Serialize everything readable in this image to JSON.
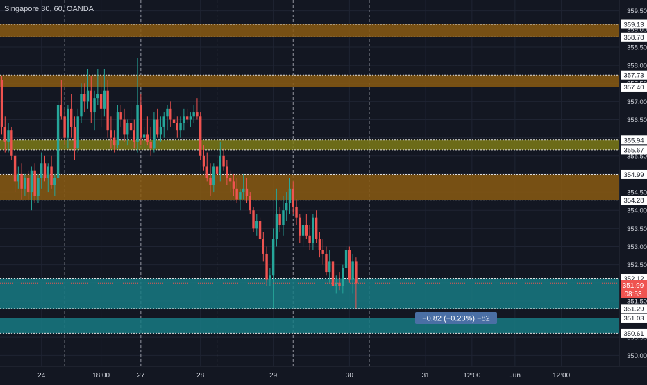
{
  "header": {
    "symbol_title": "Singapore 30, 60, OANDA"
  },
  "colors": {
    "background": "#131722",
    "grid": "#1f2433",
    "up": "#26a69a",
    "down": "#ef5350",
    "zone_orange": "#8a5a12",
    "zone_olive": "#7d7a16",
    "zone_teal": "#177a82",
    "axis_text": "#d1d4dc",
    "price_tag": "#ef5350",
    "measure_box": "#4a6fa5"
  },
  "measure_label": "−0.82 (−0.23%) −82",
  "chart_data": {
    "type": "candlestick",
    "title": "Singapore 30, 60, OANDA",
    "ylim": [
      349.7,
      359.8
    ],
    "y_ticks": [
      350.0,
      350.5,
      351.0,
      351.5,
      352.0,
      352.5,
      353.0,
      353.5,
      354.0,
      354.5,
      355.0,
      355.5,
      356.0,
      356.5,
      357.0,
      357.5,
      358.0,
      358.5,
      359.0,
      359.5
    ],
    "y_tick_labels": [
      "350.00",
      "350.50",
      "351.00",
      "351.50",
      "352.00",
      "352.50",
      "353.00",
      "353.50",
      "354.00",
      "354.50",
      "355.00",
      "355.50",
      "356.00",
      "356.50",
      "357.00",
      "357.50",
      "358.00",
      "358.50",
      "359.00",
      "359.50"
    ],
    "x_ticks": [
      {
        "label": "24",
        "bar": 12
      },
      {
        "label": "18:00",
        "bar": 30
      },
      {
        "label": "27",
        "bar": 42
      },
      {
        "label": "28",
        "bar": 60
      },
      {
        "label": "29",
        "bar": 82
      },
      {
        "label": "30",
        "bar": 105
      },
      {
        "label": "31",
        "bar": 128
      },
      {
        "label": "12:00",
        "bar": 142
      },
      {
        "label": "Jun",
        "bar": 155
      },
      {
        "label": "12:00",
        "bar": 169
      }
    ],
    "session_lines_at_bar": [
      19,
      42,
      65,
      88,
      111
    ],
    "zones": [
      {
        "low": 358.78,
        "high": 359.13,
        "kind": "orange",
        "labels": [
          "359.13",
          "358.78"
        ]
      },
      {
        "low": 357.4,
        "high": 357.73,
        "kind": "orange",
        "labels": [
          "357.73",
          "357.40"
        ]
      },
      {
        "low": 355.67,
        "high": 355.94,
        "kind": "olive",
        "labels": [
          "355.94",
          "355.67"
        ]
      },
      {
        "low": 354.28,
        "high": 354.99,
        "kind": "orange",
        "labels": [
          "354.99",
          "354.28"
        ]
      },
      {
        "low": 351.29,
        "high": 352.12,
        "kind": "teal",
        "labels": [
          "352.12",
          "351.29"
        ]
      },
      {
        "low": 350.61,
        "high": 351.03,
        "kind": "teal",
        "labels": [
          "351.03",
          "350.61"
        ]
      }
    ],
    "last_price": "351.99",
    "countdown": "08:53",
    "candles": [
      [
        357.6,
        357.7,
        356.1,
        356.3
      ],
      [
        356.3,
        356.6,
        355.6,
        355.9
      ],
      [
        355.9,
        356.4,
        355.6,
        356.2
      ],
      [
        356.2,
        356.3,
        355.4,
        355.5
      ],
      [
        355.5,
        355.6,
        354.5,
        354.8
      ],
      [
        354.8,
        355.2,
        354.6,
        355.0
      ],
      [
        355.0,
        355.3,
        354.3,
        354.6
      ],
      [
        354.6,
        355.0,
        354.4,
        354.9
      ],
      [
        354.9,
        355.1,
        354.3,
        354.5
      ],
      [
        354.5,
        355.2,
        354.0,
        355.1
      ],
      [
        355.1,
        355.3,
        354.2,
        354.4
      ],
      [
        354.4,
        355.0,
        354.2,
        354.9
      ],
      [
        354.9,
        355.6,
        354.6,
        355.3
      ],
      [
        355.3,
        355.5,
        354.8,
        354.9
      ],
      [
        354.9,
        355.3,
        354.5,
        355.2
      ],
      [
        355.2,
        355.5,
        354.6,
        354.7
      ],
      [
        354.7,
        355.0,
        354.4,
        354.9
      ],
      [
        354.9,
        357.0,
        354.8,
        356.9
      ],
      [
        356.9,
        357.6,
        356.5,
        356.6
      ],
      [
        356.6,
        356.8,
        355.8,
        356.0
      ],
      [
        356.0,
        356.9,
        355.7,
        356.8
      ],
      [
        356.8,
        357.2,
        356.0,
        356.3
      ],
      [
        356.3,
        356.6,
        355.4,
        355.7
      ],
      [
        355.7,
        356.8,
        355.6,
        356.6
      ],
      [
        356.6,
        357.5,
        356.4,
        357.2
      ],
      [
        357.2,
        357.5,
        356.7,
        357.0
      ],
      [
        357.0,
        357.9,
        356.8,
        357.3
      ],
      [
        357.3,
        357.7,
        356.4,
        356.7
      ],
      [
        356.7,
        357.3,
        356.2,
        357.1
      ],
      [
        357.1,
        357.9,
        356.9,
        357.2
      ],
      [
        357.2,
        357.7,
        356.3,
        356.8
      ],
      [
        356.8,
        357.9,
        356.6,
        357.3
      ],
      [
        357.3,
        357.6,
        356.0,
        356.2
      ],
      [
        356.2,
        356.6,
        355.7,
        356.0
      ],
      [
        356.0,
        356.2,
        355.6,
        355.8
      ],
      [
        355.8,
        356.9,
        355.7,
        356.7
      ],
      [
        356.7,
        356.9,
        356.3,
        356.5
      ],
      [
        356.5,
        356.8,
        355.9,
        356.1
      ],
      [
        356.1,
        356.5,
        355.8,
        356.4
      ],
      [
        356.4,
        356.9,
        356.1,
        356.2
      ],
      [
        356.2,
        356.5,
        355.7,
        355.9
      ],
      [
        355.9,
        358.2,
        355.6,
        356.9
      ],
      [
        356.9,
        357.2,
        355.8,
        356.0
      ],
      [
        356.0,
        356.3,
        355.7,
        356.1
      ],
      [
        356.1,
        356.6,
        355.8,
        355.9
      ],
      [
        355.9,
        356.3,
        355.5,
        355.7
      ],
      [
        355.7,
        356.7,
        355.6,
        356.5
      ],
      [
        356.5,
        356.8,
        356.0,
        356.1
      ],
      [
        356.1,
        356.6,
        355.9,
        356.3
      ],
      [
        356.3,
        356.7,
        356.0,
        356.6
      ],
      [
        356.6,
        356.9,
        356.2,
        356.8
      ],
      [
        356.8,
        357.0,
        356.3,
        356.5
      ],
      [
        356.5,
        356.7,
        356.2,
        356.4
      ],
      [
        356.4,
        356.6,
        356.0,
        356.2
      ],
      [
        356.2,
        356.6,
        356.0,
        356.4
      ],
      [
        356.4,
        356.8,
        356.2,
        356.6
      ],
      [
        356.6,
        356.8,
        356.4,
        356.5
      ],
      [
        356.5,
        356.7,
        356.3,
        356.6
      ],
      [
        356.6,
        356.9,
        356.4,
        356.7
      ],
      [
        356.7,
        357.1,
        356.5,
        356.6
      ],
      [
        356.6,
        356.7,
        355.4,
        355.5
      ],
      [
        355.5,
        355.8,
        355.1,
        355.2
      ],
      [
        355.2,
        355.6,
        354.8,
        354.9
      ],
      [
        354.9,
        355.3,
        354.4,
        354.7
      ],
      [
        354.7,
        355.3,
        354.5,
        355.2
      ],
      [
        355.2,
        355.5,
        354.9,
        355.0
      ],
      [
        355.0,
        355.9,
        354.8,
        355.5
      ],
      [
        355.5,
        355.7,
        355.1,
        355.2
      ],
      [
        355.2,
        355.4,
        354.7,
        354.9
      ],
      [
        354.9,
        355.1,
        354.5,
        354.8
      ],
      [
        354.8,
        355.0,
        354.4,
        354.6
      ],
      [
        354.6,
        354.9,
        354.2,
        354.3
      ],
      [
        354.3,
        354.6,
        354.0,
        354.5
      ],
      [
        354.5,
        355.0,
        354.3,
        354.6
      ],
      [
        354.6,
        354.9,
        354.2,
        354.4
      ],
      [
        354.4,
        354.5,
        353.9,
        354.0
      ],
      [
        354.0,
        354.1,
        353.4,
        353.5
      ],
      [
        353.5,
        353.9,
        353.3,
        353.7
      ],
      [
        353.7,
        353.8,
        353.1,
        353.2
      ],
      [
        353.2,
        353.4,
        352.6,
        352.8
      ],
      [
        352.8,
        353.0,
        351.9,
        352.1
      ],
      [
        352.1,
        352.4,
        351.9,
        352.2
      ],
      [
        352.2,
        353.5,
        351.3,
        353.2
      ],
      [
        353.2,
        354.6,
        353.0,
        353.9
      ],
      [
        353.9,
        354.1,
        353.4,
        353.6
      ],
      [
        353.6,
        354.4,
        353.3,
        354.0
      ],
      [
        354.0,
        354.5,
        353.7,
        354.2
      ],
      [
        354.2,
        354.9,
        353.9,
        354.6
      ],
      [
        354.6,
        354.8,
        353.9,
        354.1
      ],
      [
        354.1,
        354.3,
        353.6,
        353.8
      ],
      [
        353.8,
        353.9,
        353.1,
        353.3
      ],
      [
        353.3,
        353.8,
        353.0,
        353.6
      ],
      [
        353.6,
        353.9,
        353.2,
        353.3
      ],
      [
        353.3,
        353.6,
        352.9,
        353.1
      ],
      [
        353.1,
        353.9,
        352.9,
        353.8
      ],
      [
        353.8,
        354.0,
        353.1,
        353.2
      ],
      [
        353.2,
        353.4,
        352.7,
        352.9
      ],
      [
        352.9,
        353.2,
        352.5,
        352.8
      ],
      [
        352.8,
        353.0,
        352.2,
        352.3
      ],
      [
        352.3,
        352.9,
        352.0,
        352.6
      ],
      [
        352.6,
        352.8,
        351.8,
        351.9
      ],
      [
        351.9,
        352.2,
        351.7,
        352.0
      ],
      [
        352.0,
        352.3,
        351.8,
        351.9
      ],
      [
        351.9,
        352.5,
        351.7,
        352.4
      ],
      [
        352.4,
        353.0,
        352.1,
        352.9
      ],
      [
        352.9,
        353.0,
        352.0,
        352.1
      ],
      [
        352.1,
        352.8,
        351.7,
        352.6
      ],
      [
        352.6,
        352.7,
        351.3,
        351.99
      ]
    ]
  }
}
